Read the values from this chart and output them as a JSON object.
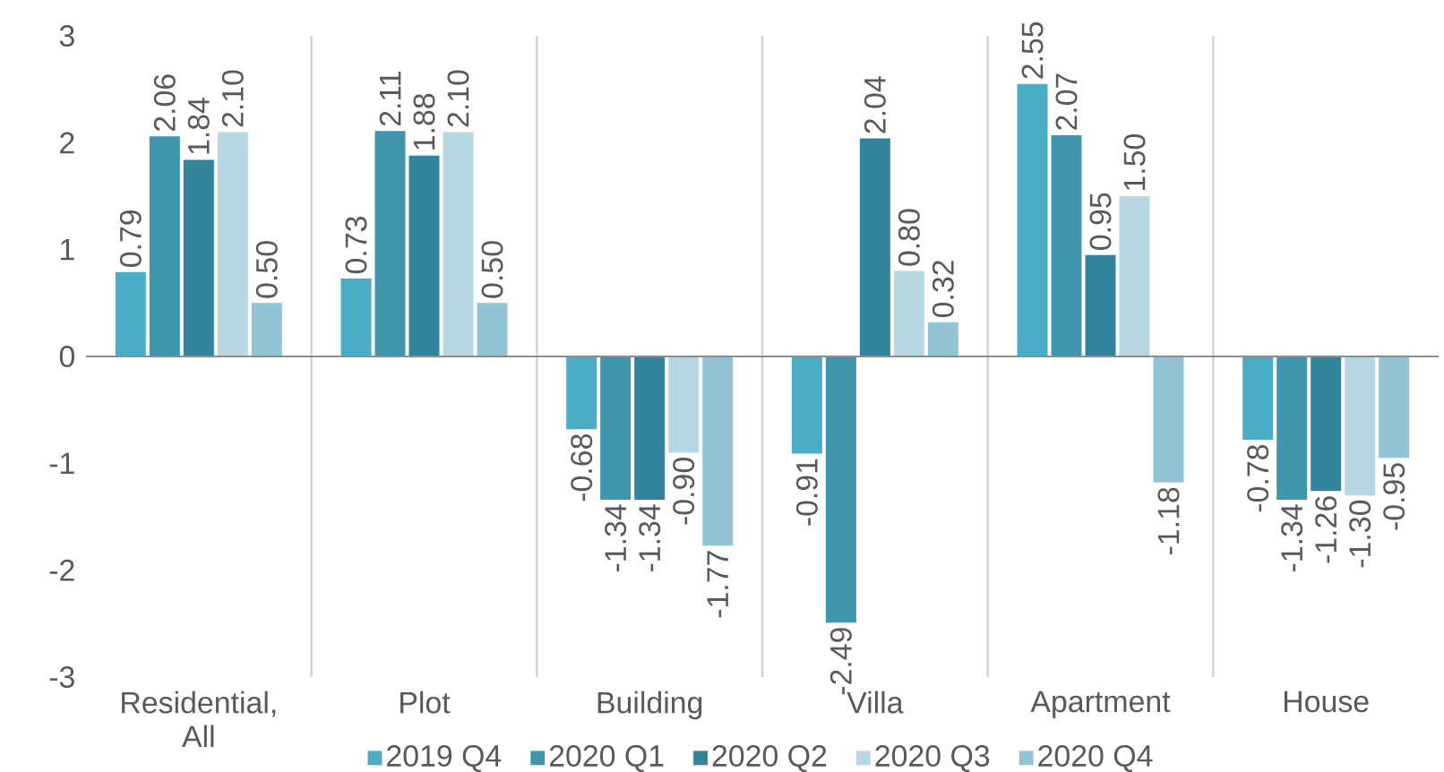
{
  "chart_data": {
    "type": "bar",
    "categories": [
      "Residential, All",
      "Plot",
      "Building",
      "Villa",
      "Apartment",
      "House"
    ],
    "series": [
      {
        "name": "2019 Q4",
        "color": "#4bacc6",
        "values": [
          0.79,
          0.73,
          -0.68,
          -0.91,
          2.55,
          -0.78
        ],
        "value_labels": [
          "0.79",
          "0.73",
          "-0.68",
          "-0.91",
          "2.55",
          "-0.78"
        ]
      },
      {
        "name": "2020 Q1",
        "color": "#3f96ad",
        "values": [
          2.06,
          2.11,
          -1.34,
          -2.49,
          2.07,
          -1.34
        ],
        "value_labels": [
          "2.06",
          "2.11",
          "-1.34",
          "-2.49",
          "2.07",
          "-1.34"
        ]
      },
      {
        "name": "2020 Q2",
        "color": "#31849b",
        "values": [
          1.84,
          1.88,
          -1.34,
          2.04,
          0.95,
          -1.26
        ],
        "value_labels": [
          "1.84",
          "1.88",
          "-1.34",
          "2.04",
          "0.95",
          "-1.26"
        ]
      },
      {
        "name": "2020 Q3",
        "color": "#b7d7e3",
        "values": [
          2.1,
          2.1,
          -0.9,
          0.8,
          1.5,
          -1.3
        ],
        "value_labels": [
          "2.10",
          "2.10",
          "-0.90",
          "0.80",
          "1.50",
          "-1.30"
        ]
      },
      {
        "name": "2020 Q4",
        "color": "#92c4d6",
        "values": [
          0.5,
          0.5,
          -1.77,
          0.32,
          -1.18,
          -0.95
        ],
        "value_labels": [
          "0.50",
          "0.50",
          "-1.77",
          "0.32",
          "-1.18",
          "-0.95"
        ]
      }
    ],
    "ylim": [
      -3,
      3
    ],
    "yticks": [
      -3,
      -2,
      -1,
      0,
      1,
      2,
      3
    ],
    "grid": "x",
    "legend": "bottom"
  }
}
